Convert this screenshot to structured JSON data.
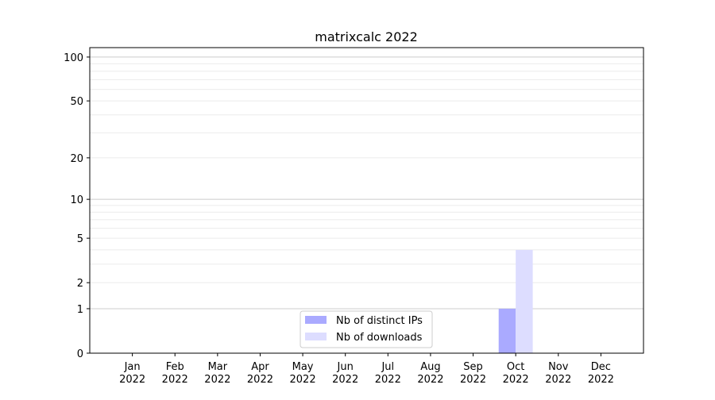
{
  "chart_data": {
    "type": "bar",
    "title": "matrixcalc 2022",
    "xlabel": "",
    "ylabel": "",
    "yscale": "log(1+y)",
    "ylim": [
      0,
      116
    ],
    "yticks": [
      0,
      1,
      2,
      5,
      10,
      20,
      50,
      100
    ],
    "ytick_labels": [
      "0",
      "1",
      "2",
      "5",
      "10",
      "20",
      "50",
      "100"
    ],
    "yminor": [
      3,
      4,
      6,
      7,
      8,
      9,
      30,
      40,
      60,
      70,
      80,
      90
    ],
    "grid": true,
    "categories": [
      "Jan\n2022",
      "Feb\n2022",
      "Mar\n2022",
      "Apr\n2022",
      "May\n2022",
      "Jun\n2022",
      "Jul\n2022",
      "Aug\n2022",
      "Sep\n2022",
      "Oct\n2022",
      "Nov\n2022",
      "Dec\n2022"
    ],
    "series": [
      {
        "name": "Nb of distinct IPs",
        "color": "#aaaaff",
        "values": [
          0,
          0,
          0,
          0,
          0,
          0,
          0,
          0,
          0,
          1,
          0,
          0
        ]
      },
      {
        "name": "Nb of downloads",
        "color": "#ddddff",
        "values": [
          0,
          0,
          0,
          0,
          0,
          0,
          0,
          0,
          0,
          4,
          0,
          0
        ]
      }
    ],
    "legend_position": "bottom-center"
  }
}
